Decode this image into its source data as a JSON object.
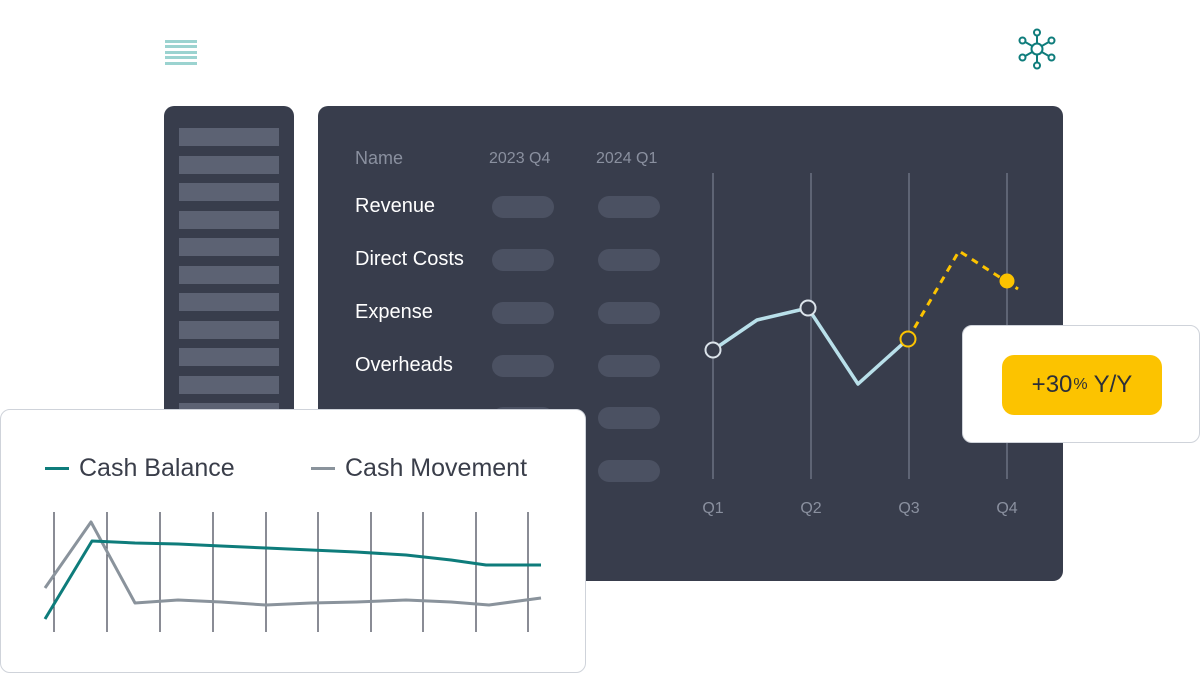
{
  "icons": {
    "menu": "menu-lines-icon",
    "network": "network-hub-icon"
  },
  "colors": {
    "panel": "#383d4c",
    "teal": "#0e7c7b",
    "gray": "#8a939c",
    "yellow": "#fcc300",
    "lightblue": "#b9e0ea"
  },
  "table": {
    "headers": [
      "Name",
      "2023 Q4",
      "2024 Q1"
    ],
    "rows": [
      "Revenue",
      "Direct Costs",
      "Expense",
      "Overheads"
    ]
  },
  "quarter_chart": {
    "type": "line",
    "categories": [
      "Q1",
      "Q2",
      "Q3",
      "Q4"
    ]
  },
  "yoy": {
    "sign_value": "+30",
    "percent": "%",
    "suffix": "Y/Y"
  },
  "cash_chart": {
    "type": "line",
    "series": [
      {
        "name": "Cash Balance"
      },
      {
        "name": "Cash Movement"
      }
    ]
  }
}
